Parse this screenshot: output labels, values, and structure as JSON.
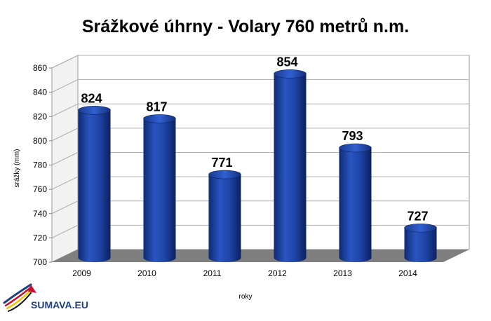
{
  "chart_data": {
    "type": "bar",
    "title": "Srážkové úhrny - Volary 760 metrů n.m.",
    "xlabel": "roky",
    "ylabel": "srážky (mm)",
    "categories": [
      "2009",
      "2010",
      "2011",
      "2012",
      "2013",
      "2014"
    ],
    "values": [
      824,
      817,
      771,
      854,
      793,
      727
    ],
    "ylim": [
      700,
      860
    ],
    "yticks": [
      700,
      720,
      740,
      760,
      780,
      800,
      820,
      840,
      860
    ],
    "data_labels": [
      "824",
      "817",
      "771",
      "854",
      "793",
      "727"
    ],
    "grid": true,
    "legend": "none",
    "style": "3d-cylinder",
    "bar_color": "#1f3f9a",
    "floor_color": "#7f7f7f"
  },
  "logo": {
    "text": "SUMAVA.EU"
  }
}
